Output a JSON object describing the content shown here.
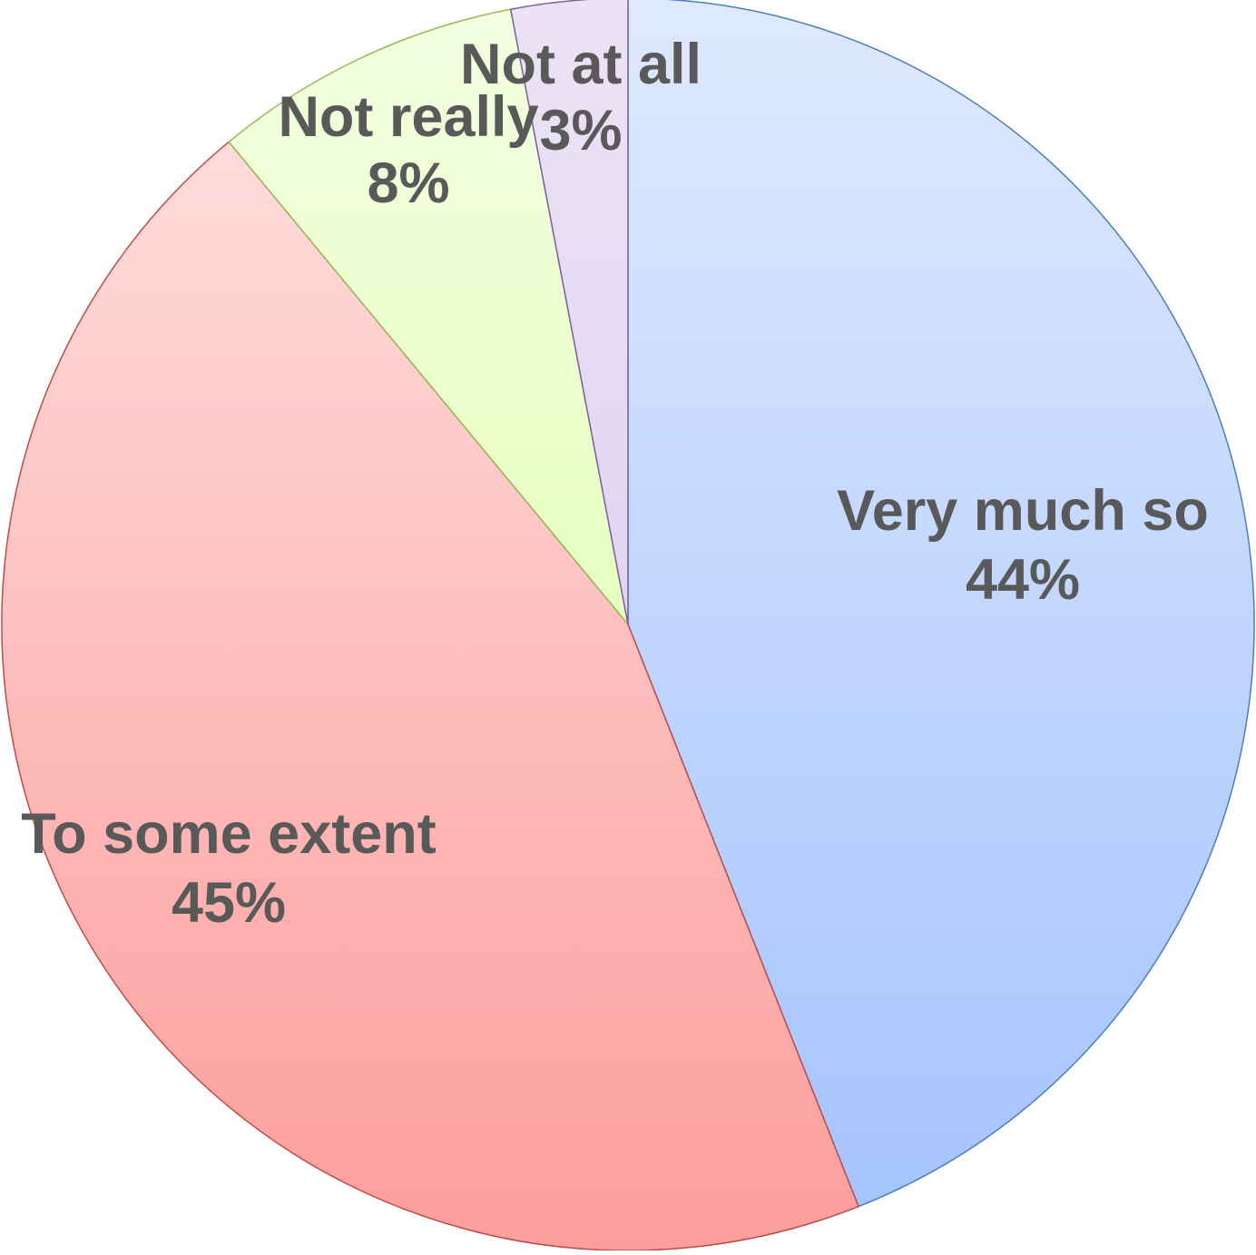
{
  "chart_data": {
    "type": "pie",
    "start_angle_deg": 0,
    "direction": "clockwise",
    "slices": [
      {
        "label": "Very much so",
        "percent_label": "44%",
        "value": 44,
        "color_top": "#dfe9ff",
        "color_bottom": "#a3c3fd",
        "stroke": "#4a7ebb"
      },
      {
        "label": "To some extent",
        "percent_label": "45%",
        "value": 45,
        "color_top": "#ffe3e3",
        "color_bottom": "#fc9e9c",
        "stroke": "#be4b48"
      },
      {
        "label": "Not really",
        "percent_label": "8%",
        "value": 8,
        "color_top": "#f3ffe1",
        "color_bottom": "#d9ff9e",
        "stroke": "#98b954"
      },
      {
        "label": "Not at all",
        "percent_label": "3%",
        "value": 3,
        "color_top": "#ebe3f5",
        "color_bottom": "#d6c6ee",
        "stroke": "#7d60a0"
      }
    ]
  }
}
